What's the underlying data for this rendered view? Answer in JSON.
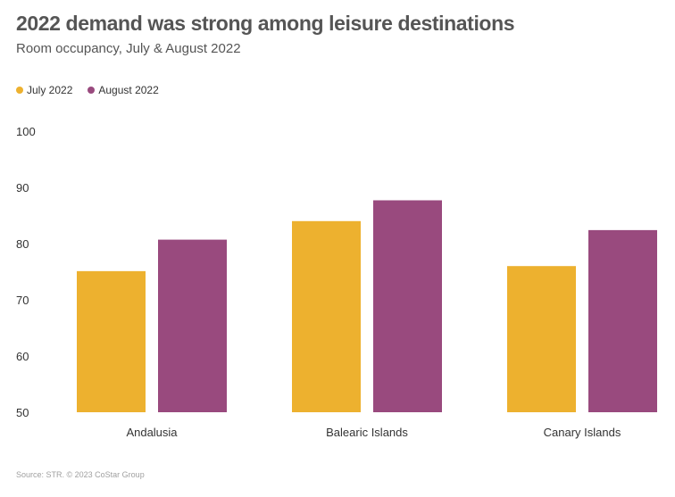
{
  "header": {
    "title": "2022 demand was strong among leisure destinations",
    "subtitle": "Room occupancy, July & August 2022"
  },
  "legend": {
    "items": [
      {
        "label": "July 2022",
        "color": "#EDB12F"
      },
      {
        "label": "August 2022",
        "color": "#994A7E"
      }
    ]
  },
  "chart_data": {
    "type": "bar",
    "title": "2022 demand was strong among leisure destinations",
    "subtitle": "Room occupancy, July & August 2022",
    "xlabel": "",
    "ylabel": "",
    "categories": [
      "Andalusia",
      "Balearic Islands",
      "Canary Islands"
    ],
    "series": [
      {
        "name": "July 2022",
        "color": "#EDB12F",
        "values": [
          75.1,
          84.0,
          76.0
        ]
      },
      {
        "name": "August 2022",
        "color": "#994A7E",
        "values": [
          80.7,
          87.7,
          82.4
        ]
      }
    ],
    "ylim": [
      50,
      100
    ],
    "yticks": [
      50,
      60,
      70,
      80,
      90,
      100
    ],
    "grid": false,
    "legend_position": "top-left"
  },
  "footer": {
    "source": "Source: STR. © 2023 CoStar Group"
  }
}
